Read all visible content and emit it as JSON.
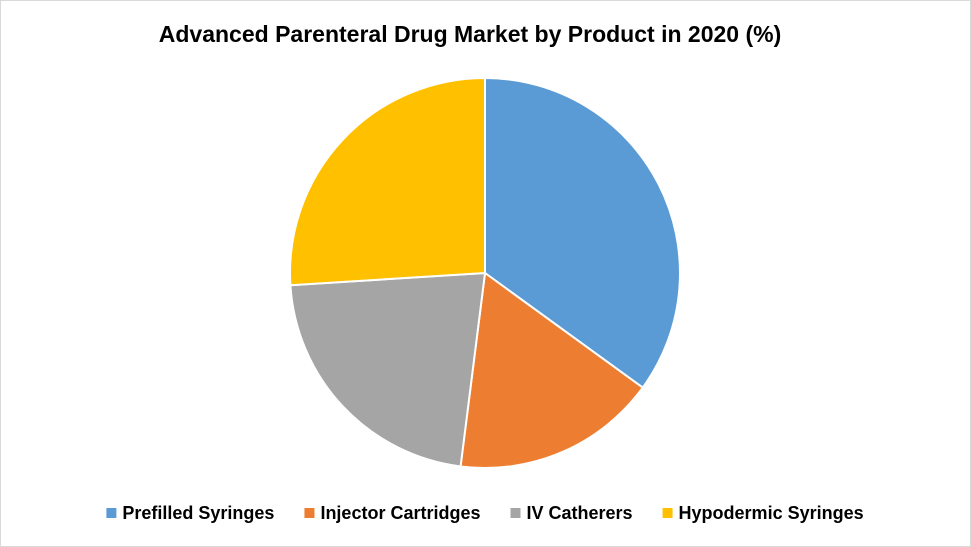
{
  "chart_data": {
    "type": "pie",
    "title": "Advanced Parenteral Drug Market by Product in 2020 (%)",
    "categories": [
      "Prefilled Syringes",
      "Injector Cartridges",
      "IV Catherers",
      "Hypodermic Syringes"
    ],
    "values": [
      35,
      17,
      22,
      26
    ],
    "colors": [
      "#5b9bd5",
      "#ed7d31",
      "#a5a5a5",
      "#ffc000"
    ],
    "legend": "bottom"
  }
}
